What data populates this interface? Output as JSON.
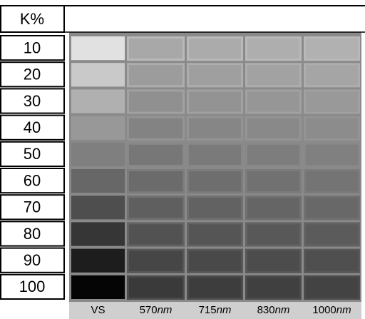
{
  "header": {
    "corner": "K%"
  },
  "rows": [
    "10",
    "20",
    "30",
    "40",
    "50",
    "60",
    "70",
    "80",
    "90",
    "100"
  ],
  "columns": [
    {
      "text": "VS"
    },
    {
      "text": "570",
      "unit": "nm"
    },
    {
      "text": "715",
      "unit": "nm"
    },
    {
      "text": "830",
      "unit": "nm"
    },
    {
      "text": "1000",
      "unit": "nm"
    }
  ]
}
